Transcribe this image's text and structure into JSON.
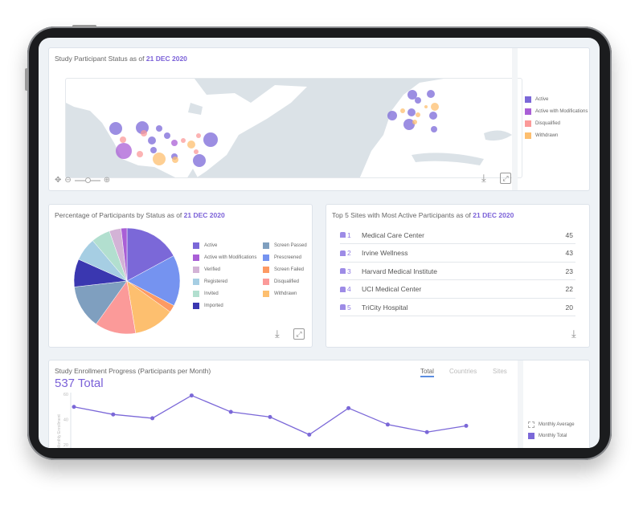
{
  "colors": {
    "accent": "#7b61d8",
    "active": "#7b68d8",
    "active_mod": "#a95fd6",
    "disqualified": "#fb9a99",
    "withdrawn": "#fdbf6f",
    "verified": "#d3b3d6",
    "registered": "#a6cee3",
    "invited": "#b2dfcf",
    "imported": "#3a37b0",
    "screen_passed": "#7f9fbf",
    "prescreened": "#7593f0",
    "screen_failed": "#fd9a63",
    "line": "#7b68d8"
  },
  "map_card": {
    "title": "Study Participant Status as of ",
    "date": "21 DEC 2020",
    "legend": [
      {
        "label": "Active",
        "color": "#7b68d8"
      },
      {
        "label": "Active with Modifications",
        "color": "#a95fd6"
      },
      {
        "label": "Disqualified",
        "color": "#fb9a99"
      },
      {
        "label": "Withdrawn",
        "color": "#fdbf6f"
      }
    ],
    "controls": {
      "pan": "move-icon",
      "zoom_out": "zoom-out-icon",
      "zoom_in": "zoom-in-icon",
      "zoom_level": 0.5
    }
  },
  "pie_card": {
    "title": "Percentage of Participants by Status as of ",
    "date": "21 DEC 2020",
    "chart_data": {
      "type": "pie",
      "categories": [
        "Active",
        "Prescreened",
        "Screen Failed",
        "Withdrawn",
        "Disqualified",
        "Screen Passed",
        "Imported",
        "Registered",
        "Invited",
        "Verified",
        "Active with Modifications"
      ],
      "values": [
        17.1,
        15.6,
        2.2,
        12.5,
        12.5,
        13.3,
        8.5,
        7.1,
        5.8,
        3.6,
        1.8
      ],
      "colors": [
        "#7b68d8",
        "#7593f0",
        "#fd9a63",
        "#fdbf6f",
        "#fb9a99",
        "#7f9fbf",
        "#3a37b0",
        "#a6cee3",
        "#b2dfcf",
        "#d3b3d6",
        "#a95fd6"
      ],
      "legend_left": [
        {
          "label": "Active",
          "color": "#7b68d8"
        },
        {
          "label": "Active with Modifications",
          "color": "#a95fd6"
        },
        {
          "label": "Verified",
          "color": "#d3b3d6"
        },
        {
          "label": "Registered",
          "color": "#a6cee3"
        },
        {
          "label": "Invited",
          "color": "#b2dfcf"
        },
        {
          "label": "Imported",
          "color": "#3a37b0"
        }
      ],
      "legend_right": [
        {
          "label": "Screen Passed",
          "color": "#7f9fbf"
        },
        {
          "label": "Prescreened",
          "color": "#7593f0"
        },
        {
          "label": "Screen Failed",
          "color": "#fd9a63"
        },
        {
          "label": "Disqualified",
          "color": "#fb9a99"
        },
        {
          "label": "Withdrawn",
          "color": "#fdbf6f"
        }
      ]
    }
  },
  "sites_card": {
    "title": "Top 5 Sites with Most Active Participants as of ",
    "date": "21 DEC 2020",
    "rows": [
      {
        "rank": "1",
        "name": "Medical Care Center",
        "count": "45"
      },
      {
        "rank": "2",
        "name": "Irvine Wellness",
        "count": "43"
      },
      {
        "rank": "3",
        "name": "Harvard Medical Institute",
        "count": "23"
      },
      {
        "rank": "4",
        "name": "UCI Medical Center",
        "count": "22"
      },
      {
        "rank": "5",
        "name": "TriCity Hospital",
        "count": "20"
      }
    ]
  },
  "enrollment_card": {
    "title": "Study Enrollment Progress (Participants per Month)",
    "total": "537 Total",
    "tabs": [
      "Total",
      "Countries",
      "Sites"
    ],
    "active_tab": "Total",
    "legend": [
      {
        "label": "Monthly Average"
      },
      {
        "label": "Monthly Total",
        "color": "#7b68d8"
      }
    ],
    "chart_data": {
      "type": "line",
      "ylabel": "Monthly Enrollment",
      "yticks": [
        20,
        40,
        60
      ],
      "ylim": [
        20,
        60
      ],
      "series": [
        {
          "name": "Monthly Total",
          "values": [
            50,
            44,
            41,
            59,
            46,
            42,
            28,
            49,
            36,
            30,
            35
          ]
        }
      ]
    }
  }
}
